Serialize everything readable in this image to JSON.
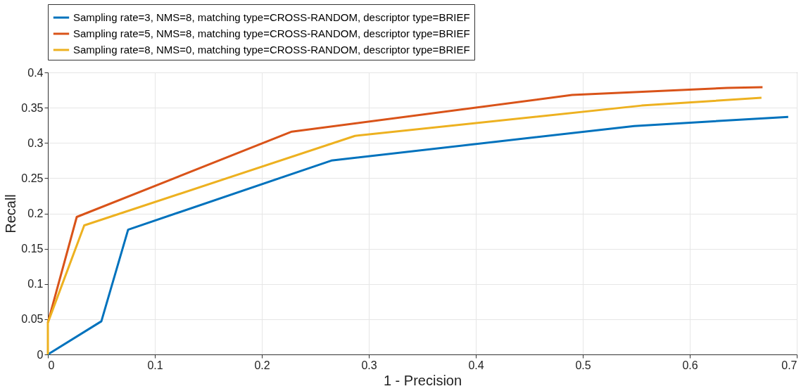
{
  "chart_data": {
    "type": "line",
    "xlabel": "1 - Precision",
    "ylabel": "Recall",
    "xlim": [
      0,
      0.7
    ],
    "ylim": [
      0,
      0.4
    ],
    "xticks": [
      0,
      0.1,
      0.2,
      0.3,
      0.4,
      0.5,
      0.6,
      0.7
    ],
    "yticks": [
      0,
      0.05,
      0.1,
      0.15,
      0.2,
      0.25,
      0.3,
      0.35,
      0.4
    ],
    "grid": true,
    "legend": "top",
    "series": [
      {
        "name": "Sampling rate=3, NMS=8, matching type=CROSS-RANDOM, descriptor type=BRIEF",
        "color": "#0072bd",
        "x": [
          0,
          0.05,
          0.075,
          0.265,
          0.548,
          0.692
        ],
        "values": [
          0,
          0.047,
          0.177,
          0.275,
          0.324,
          0.337
        ]
      },
      {
        "name": "Sampling rate=5, NMS=8, matching type=CROSS-RANDOM, descriptor type=BRIEF",
        "color": "#d95319",
        "x": [
          0,
          0.027,
          0.228,
          0.49,
          0.635,
          0.668
        ],
        "values": [
          0.045,
          0.195,
          0.316,
          0.368,
          0.378,
          0.379
        ]
      },
      {
        "name": "Sampling rate=8, NMS=0, matching type=CROSS-RANDOM, descriptor type=BRIEF",
        "color": "#edb120",
        "x": [
          0,
          0,
          0.034,
          0.287,
          0.555,
          0.667
        ],
        "values": [
          0,
          0.045,
          0.183,
          0.31,
          0.353,
          0.364
        ]
      }
    ]
  }
}
